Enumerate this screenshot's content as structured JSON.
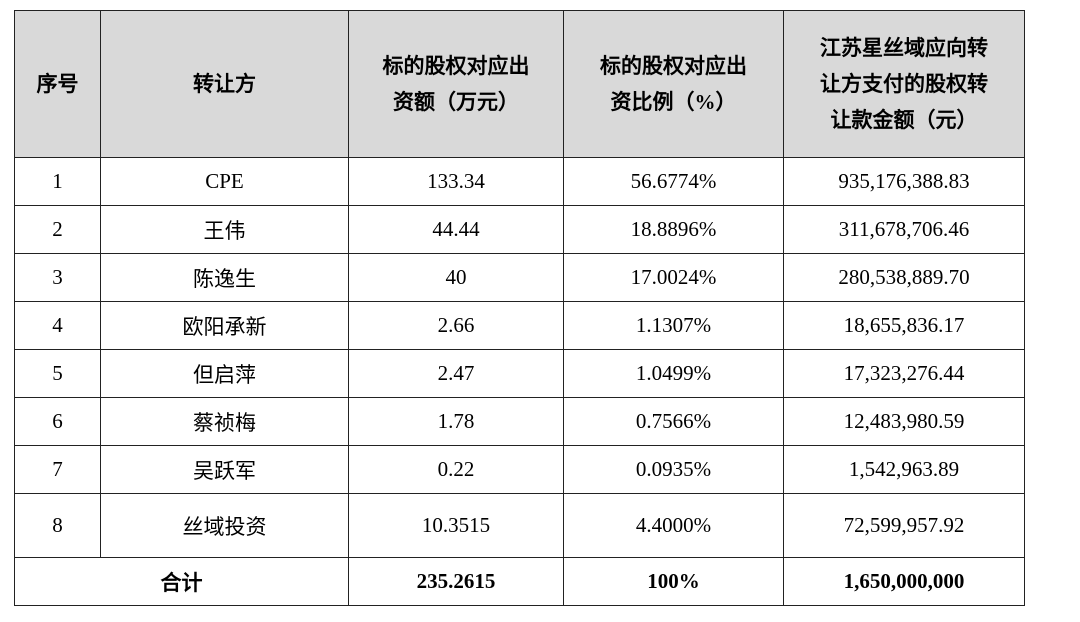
{
  "table": {
    "header": [
      [
        "序号"
      ],
      [
        "转让方"
      ],
      [
        "标的股权对应出",
        "资额（万元）"
      ],
      [
        "标的股权对应出",
        "资比例（%）"
      ],
      [
        "江苏星丝域应向转",
        "让方支付的股权转",
        "让款金额（元）"
      ]
    ],
    "rows": [
      [
        "1",
        "CPE",
        "133.34",
        "56.6774%",
        "935,176,388.83"
      ],
      [
        "2",
        "王伟",
        "44.44",
        "18.8896%",
        "311,678,706.46"
      ],
      [
        "3",
        "陈逸生",
        "40",
        "17.0024%",
        "280,538,889.70"
      ],
      [
        "4",
        "欧阳承新",
        "2.66",
        "1.1307%",
        "18,655,836.17"
      ],
      [
        "5",
        "但启萍",
        "2.47",
        "1.0499%",
        "17,323,276.44"
      ],
      [
        "6",
        "蔡祯梅",
        "1.78",
        "0.7566%",
        "12,483,980.59"
      ],
      [
        "7",
        "吴跃军",
        "0.22",
        "0.0935%",
        "1,542,963.89"
      ],
      [
        "8",
        "丝域投资",
        "10.3515",
        "4.4000%",
        "72,599,957.92"
      ]
    ],
    "total": [
      "合计",
      "235.2615",
      "100%",
      "1,650,000,000"
    ]
  }
}
